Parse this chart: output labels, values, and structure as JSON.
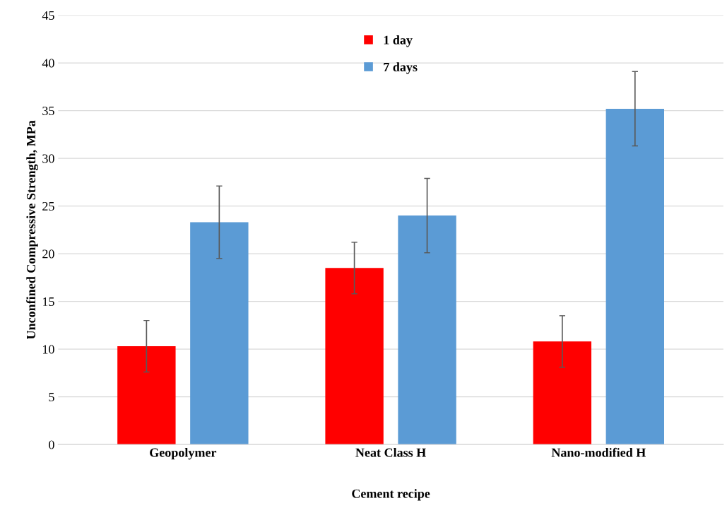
{
  "chart_data": {
    "type": "bar",
    "xlabel": "Cement recipe",
    "ylabel": "Unconfined Compressive Strength, MPa",
    "categories": [
      "Geopolymer",
      "Neat Class H",
      "Nano-modified H"
    ],
    "series": [
      {
        "name": "1 day",
        "color": "#ff0000",
        "values": [
          10.3,
          18.5,
          10.8
        ],
        "errors": [
          2.7,
          2.7,
          2.7
        ]
      },
      {
        "name": "7 days",
        "color": "#5b9bd5",
        "values": [
          23.3,
          24.0,
          35.2
        ],
        "errors": [
          3.8,
          3.9,
          3.9
        ]
      }
    ],
    "ylim": [
      0,
      45
    ],
    "yticks": [
      0,
      5,
      10,
      15,
      20,
      25,
      30,
      35,
      40,
      45
    ],
    "grid": "y",
    "legend": "top"
  }
}
